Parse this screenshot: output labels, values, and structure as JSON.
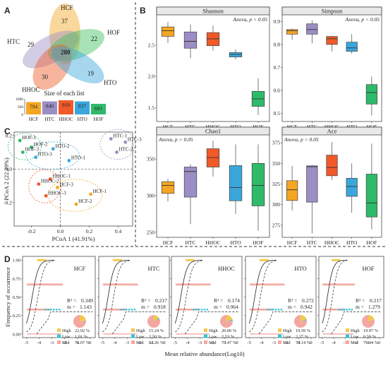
{
  "panels": {
    "A": "A",
    "B": "B",
    "C": "C",
    "D": "D"
  },
  "venn": {
    "sets": [
      {
        "name": "HCF",
        "color": "#f5a623",
        "unique": "37"
      },
      {
        "name": "HTC",
        "color": "#9b8ec4",
        "unique": "29"
      },
      {
        "name": "HOF",
        "color": "#3fbf5f",
        "unique": "22"
      },
      {
        "name": "HHOC",
        "color": "#f05a28",
        "unique": "30"
      },
      {
        "name": "HTO",
        "color": "#3aa7dc",
        "unique": "19"
      }
    ],
    "core": "280",
    "size_title": "Size of each list",
    "size_axis_ticks": [
      "1000",
      "500",
      "0"
    ]
  },
  "chart_data": [
    {
      "type": "bar",
      "title": "Size of each list",
      "categories": [
        "HCF",
        "HTC",
        "HHOC",
        "HTO",
        "HOF"
      ],
      "values": [
        794,
        840,
        910,
        837,
        681
      ],
      "ylim": [
        0,
        1000
      ],
      "colors": [
        "#f5a623",
        "#9b8ec4",
        "#f05a28",
        "#3aa7dc",
        "#2fba6a"
      ]
    },
    {
      "type": "box",
      "title": "Shannon",
      "annotation": "Anova, p < 0.05",
      "categories": [
        "HCF",
        "HTC",
        "HHOC",
        "HTO",
        "HOF"
      ],
      "ylim": [
        1.3,
        2.95
      ],
      "yticks": [
        1.5,
        2.0,
        2.5
      ],
      "ytick_labels": [
        "1.5",
        "2.0",
        "2.5"
      ],
      "boxes": [
        {
          "min": 2.53,
          "q1": 2.64,
          "median": 2.73,
          "q3": 2.79,
          "max": 2.87
        },
        {
          "min": 2.29,
          "q1": 2.45,
          "median": 2.56,
          "q3": 2.71,
          "max": 2.83
        },
        {
          "min": 2.41,
          "q1": 2.49,
          "median": 2.6,
          "q3": 2.7,
          "max": 2.81
        },
        {
          "min": 2.27,
          "q1": 2.31,
          "median": 2.35,
          "q3": 2.38,
          "max": 2.43
        },
        {
          "min": 1.38,
          "q1": 1.52,
          "median": 1.64,
          "q3": 1.76,
          "max": 1.97
        }
      ]
    },
    {
      "type": "box",
      "title": "Simpson",
      "annotation": "Anova, p < 0.05",
      "categories": [
        "HCF",
        "HTC",
        "HHOC",
        "HTO",
        "HOF"
      ],
      "ylim": [
        0.47,
        0.92
      ],
      "yticks": [
        0.5,
        0.6,
        0.7,
        0.8,
        0.9
      ],
      "ytick_labels": [
        "0.5",
        "0.6",
        "0.7",
        "0.8",
        "0.9"
      ],
      "boxes": [
        {
          "min": 0.82,
          "q1": 0.845,
          "median": 0.86,
          "q3": 0.865,
          "max": 0.87
        },
        {
          "min": 0.805,
          "q1": 0.845,
          "median": 0.865,
          "q3": 0.89,
          "max": 0.905
        },
        {
          "min": 0.77,
          "q1": 0.8,
          "median": 0.825,
          "q3": 0.835,
          "max": 0.838
        },
        {
          "min": 0.76,
          "q1": 0.77,
          "median": 0.785,
          "q3": 0.81,
          "max": 0.845
        },
        {
          "min": 0.49,
          "q1": 0.54,
          "median": 0.59,
          "q3": 0.625,
          "max": 0.66
        }
      ]
    },
    {
      "type": "box",
      "title": "Chao1",
      "annotation": "Anova, p > 0.05",
      "categories": [
        "HCF",
        "HTC",
        "HHOC",
        "HTO",
        "HOF"
      ],
      "ylim": [
        245,
        380
      ],
      "yticks": [
        250,
        300,
        350
      ],
      "ytick_labels": [
        "250",
        "300",
        "350"
      ],
      "boxes": [
        {
          "min": 292,
          "q1": 303,
          "median": 314,
          "q3": 319,
          "max": 323
        },
        {
          "min": 261,
          "q1": 298,
          "median": 333,
          "q3": 339,
          "max": 343
        },
        {
          "min": 326,
          "q1": 339,
          "median": 352,
          "q3": 364,
          "max": 375
        },
        {
          "min": 275,
          "q1": 293,
          "median": 311,
          "q3": 341,
          "max": 370
        },
        {
          "min": 252,
          "q1": 286,
          "median": 314,
          "q3": 344,
          "max": 370
        }
      ]
    },
    {
      "type": "box",
      "title": "Ace",
      "annotation": "Anova, p > 0.05",
      "categories": [
        "HCF",
        "HTC",
        "HHOC",
        "HTO",
        "HOF"
      ],
      "ylim": [
        262,
        382
      ],
      "yticks": [
        275,
        300,
        325,
        350,
        375
      ],
      "ytick_labels": [
        "275",
        "300",
        "325",
        "350",
        "375"
      ],
      "boxes": [
        {
          "min": 293,
          "q1": 305,
          "median": 318,
          "q3": 329,
          "max": 347
        },
        {
          "min": 265,
          "q1": 303,
          "median": 346,
          "q3": 347,
          "max": 348
        },
        {
          "min": 330,
          "q1": 335,
          "median": 345,
          "q3": 360,
          "max": 376
        },
        {
          "min": 290,
          "q1": 310,
          "median": 322,
          "q3": 332,
          "max": 350
        },
        {
          "min": 270,
          "q1": 285,
          "median": 302,
          "q3": 337,
          "max": 374
        }
      ]
    },
    {
      "type": "scatter",
      "xlabel": "PCoA 1 (41.91%)",
      "ylabel": "PCoA 2 (22.29%)",
      "xlim": [
        -0.32,
        0.5
      ],
      "ylim": [
        -0.34,
        0.22
      ],
      "xticks": [
        -0.2,
        0.0,
        0.2,
        0.4
      ],
      "xtick_labels": [
        "-0.2",
        "0.0",
        "0.2",
        "0.4"
      ],
      "yticks": [
        -0.2,
        0.0,
        0.2
      ],
      "ytick_labels": [
        "-0.2",
        "0.0",
        "0.2"
      ],
      "points": [
        {
          "label": "HOF-1",
          "group": "HOF",
          "x": -0.28,
          "y": 0.17,
          "color": "#2fba6a"
        },
        {
          "label": "HOF-2",
          "group": "HOF",
          "x": -0.2,
          "y": 0.13,
          "color": "#2fba6a"
        },
        {
          "label": "HOF-3",
          "group": "HOF",
          "x": -0.26,
          "y": 0.1,
          "color": "#2fba6a"
        },
        {
          "label": "HTO-3",
          "group": "HTO",
          "x": -0.17,
          "y": 0.07,
          "color": "#3aa7dc"
        },
        {
          "label": "HTO-2",
          "group": "HTO",
          "x": -0.05,
          "y": 0.12,
          "color": "#3aa7dc"
        },
        {
          "label": "HTO-1",
          "group": "HTO",
          "x": 0.06,
          "y": 0.05,
          "color": "#3aa7dc"
        },
        {
          "label": "HTC-1",
          "group": "HTC",
          "x": 0.35,
          "y": 0.18,
          "color": "#9b8ec4"
        },
        {
          "label": "HTC-3",
          "group": "HTC",
          "x": 0.45,
          "y": 0.16,
          "color": "#9b8ec4"
        },
        {
          "label": "HTC-2",
          "group": "HTC",
          "x": 0.39,
          "y": 0.1,
          "color": "#9b8ec4"
        },
        {
          "label": "HHOC-1",
          "group": "HHOC",
          "x": -0.07,
          "y": -0.06,
          "color": "#f05a28"
        },
        {
          "label": "HHOC-2",
          "group": "HHOC",
          "x": -0.15,
          "y": -0.09,
          "color": "#f05a28"
        },
        {
          "label": "HHOC-3",
          "group": "HHOC",
          "x": -0.1,
          "y": -0.16,
          "color": "#f05a28"
        },
        {
          "label": "HCF-1",
          "group": "HCF",
          "x": 0.21,
          "y": -0.15,
          "color": "#f5a623"
        },
        {
          "label": "HCF-2",
          "group": "HCF",
          "x": 0.11,
          "y": -0.21,
          "color": "#f5a623"
        },
        {
          "label": "HCF-3",
          "group": "HCF",
          "x": -0.02,
          "y": -0.11,
          "color": "#f5a623"
        }
      ]
    },
    {
      "type": "scatter",
      "description_of_panels": "neutral community model fits",
      "xlabel": "Mean relative abundance(Log10)",
      "ylabel": "Frequency of occurrence",
      "xlim": [
        -5.3,
        0.4
      ],
      "ylim": [
        -0.05,
        1.05
      ],
      "xticks": [
        -5,
        -4,
        -3,
        -2,
        -1,
        0
      ],
      "xtick_labels": [
        "-5",
        "-4",
        "-3",
        "-2",
        "-1",
        "0"
      ],
      "yticks": [
        0,
        0.25,
        0.5,
        0.75,
        1.0
      ],
      "ytick_labels": [
        "0.00",
        "0.25",
        "0.50",
        "0.75",
        "1.00"
      ],
      "legend": [
        "High",
        "Low",
        "Mid"
      ],
      "legend_colors": [
        "#f2c94c",
        "#2ec4d6",
        "#f4a7a0"
      ],
      "panels": [
        {
          "name": "HCF",
          "R2": "0.349",
          "m": "1.143",
          "high": "22.92 %",
          "low": "1.01 %",
          "mid": "76.07 %",
          "fractions": [
            22.92,
            1.01,
            76.07
          ]
        },
        {
          "name": "HTC",
          "R2": "0.217",
          "m": "0.918",
          "high": "15.24 %",
          "low": "2.50 %",
          "mid": "82.26 %",
          "fractions": [
            15.24,
            2.5,
            82.26
          ]
        },
        {
          "name": "HHOC",
          "R2": "0.174",
          "m": "0.964",
          "high": "20.00 %",
          "low": "2.53 %",
          "mid": "77.47 %",
          "fractions": [
            20.0,
            2.53,
            77.47
          ]
        },
        {
          "name": "HTO",
          "R2": "0.272",
          "m": "0.942",
          "high": "19.59 %",
          "low": "2.27 %",
          "mid": "78.14 %",
          "fractions": [
            19.59,
            2.27,
            78.14
          ]
        },
        {
          "name": "HOF",
          "R2": "0.217",
          "m": "1.279",
          "high": "19.97 %",
          "low": "0.59 %",
          "mid": "79.44 %",
          "fractions": [
            19.97,
            0.59,
            79.44
          ]
        }
      ]
    }
  ]
}
